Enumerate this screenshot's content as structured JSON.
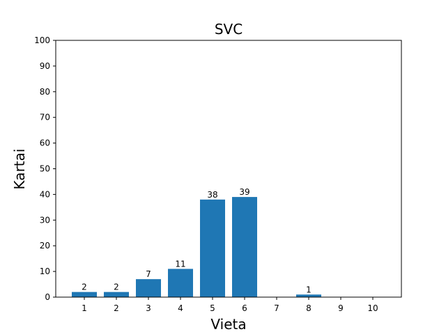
{
  "chart_data": {
    "type": "bar",
    "title": "SVC",
    "xlabel": "Vieta",
    "ylabel": "Kartai",
    "categories": [
      "1",
      "2",
      "3",
      "4",
      "5",
      "6",
      "7",
      "8",
      "9",
      "10"
    ],
    "values": [
      2,
      2,
      7,
      11,
      38,
      39,
      0,
      1,
      0,
      0
    ],
    "data_labels": [
      "2",
      "2",
      "7",
      "11",
      "38",
      "39",
      "",
      "1",
      "",
      ""
    ],
    "ylim": [
      0,
      100
    ],
    "yticks": [
      0,
      10,
      20,
      30,
      40,
      50,
      60,
      70,
      80,
      90,
      100
    ],
    "bar_color": "#1f77b4",
    "grid": false,
    "legend": "none"
  }
}
